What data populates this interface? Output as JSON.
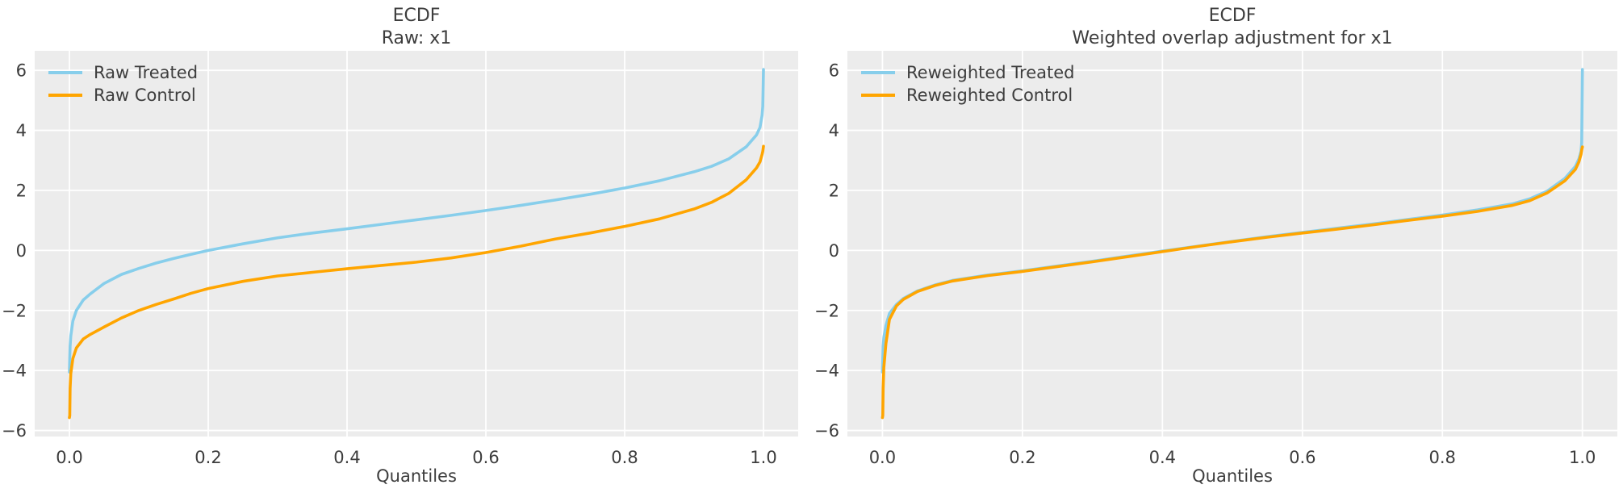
{
  "style": {
    "figure_background": "#ffffff",
    "plot_background": "#ececec",
    "grid_color": "#ffffff",
    "text_color": "#3d3d3d",
    "treated_color": "#87ceeb",
    "control_color": "#ffa500"
  },
  "chart_data": [
    {
      "type": "line",
      "title_lines": [
        "ECDF",
        "Raw: x1"
      ],
      "xlabel": "Quantiles",
      "ylabel": "",
      "x_tick_labels": [
        "0.0",
        "0.2",
        "0.4",
        "0.6",
        "0.8",
        "1.0"
      ],
      "y_tick_labels": [
        "6",
        "4",
        "2",
        "0",
        "−2",
        "−4",
        "−6"
      ],
      "x_tick_values": [
        0.0,
        0.2,
        0.4,
        0.6,
        0.8,
        1.0
      ],
      "y_tick_values": [
        6,
        4,
        2,
        0,
        -2,
        -4,
        -6
      ],
      "xlim": [
        -0.05,
        1.05
      ],
      "ylim": [
        -6.2,
        6.65
      ],
      "grid": true,
      "legend_position": "upper left",
      "series": [
        {
          "name": "Raw Treated",
          "color": "#87ceeb",
          "points": [
            [
              0,
              -4.05
            ],
            [
              0.0005,
              -3.6
            ],
            [
              0.001,
              -3.2
            ],
            [
              0.002,
              -2.85
            ],
            [
              0.005,
              -2.35
            ],
            [
              0.01,
              -2.0
            ],
            [
              0.02,
              -1.65
            ],
            [
              0.03,
              -1.45
            ],
            [
              0.05,
              -1.1
            ],
            [
              0.075,
              -0.8
            ],
            [
              0.1,
              -0.6
            ],
            [
              0.125,
              -0.42
            ],
            [
              0.15,
              -0.27
            ],
            [
              0.175,
              -0.13
            ],
            [
              0.2,
              0.0
            ],
            [
              0.25,
              0.22
            ],
            [
              0.3,
              0.42
            ],
            [
              0.35,
              0.58
            ],
            [
              0.4,
              0.72
            ],
            [
              0.45,
              0.87
            ],
            [
              0.5,
              1.02
            ],
            [
              0.55,
              1.17
            ],
            [
              0.6,
              1.33
            ],
            [
              0.65,
              1.5
            ],
            [
              0.7,
              1.68
            ],
            [
              0.75,
              1.87
            ],
            [
              0.8,
              2.08
            ],
            [
              0.85,
              2.32
            ],
            [
              0.9,
              2.62
            ],
            [
              0.925,
              2.8
            ],
            [
              0.95,
              3.05
            ],
            [
              0.975,
              3.45
            ],
            [
              0.99,
              3.85
            ],
            [
              0.995,
              4.1
            ],
            [
              0.998,
              4.5
            ],
            [
              0.999,
              4.8
            ],
            [
              1,
              6.03
            ]
          ]
        },
        {
          "name": "Raw Control",
          "color": "#ffa500",
          "points": [
            [
              0,
              -5.57
            ],
            [
              0.0005,
              -5.5
            ],
            [
              0.001,
              -4.6
            ],
            [
              0.002,
              -4.1
            ],
            [
              0.005,
              -3.6
            ],
            [
              0.01,
              -3.25
            ],
            [
              0.02,
              -2.95
            ],
            [
              0.03,
              -2.8
            ],
            [
              0.05,
              -2.55
            ],
            [
              0.075,
              -2.25
            ],
            [
              0.1,
              -2.0
            ],
            [
              0.125,
              -1.8
            ],
            [
              0.15,
              -1.62
            ],
            [
              0.175,
              -1.43
            ],
            [
              0.2,
              -1.27
            ],
            [
              0.25,
              -1.03
            ],
            [
              0.3,
              -0.85
            ],
            [
              0.35,
              -0.73
            ],
            [
              0.4,
              -0.61
            ],
            [
              0.45,
              -0.5
            ],
            [
              0.5,
              -0.39
            ],
            [
              0.55,
              -0.25
            ],
            [
              0.6,
              -0.07
            ],
            [
              0.65,
              0.14
            ],
            [
              0.7,
              0.38
            ],
            [
              0.75,
              0.58
            ],
            [
              0.8,
              0.8
            ],
            [
              0.85,
              1.05
            ],
            [
              0.9,
              1.38
            ],
            [
              0.925,
              1.6
            ],
            [
              0.95,
              1.9
            ],
            [
              0.975,
              2.35
            ],
            [
              0.99,
              2.75
            ],
            [
              0.995,
              2.95
            ],
            [
              0.998,
              3.2
            ],
            [
              0.999,
              3.3
            ],
            [
              1,
              3.47
            ]
          ]
        }
      ]
    },
    {
      "type": "line",
      "title_lines": [
        "ECDF",
        "Weighted overlap adjustment for x1"
      ],
      "xlabel": "Quantiles",
      "ylabel": "",
      "x_tick_labels": [
        "0.0",
        "0.2",
        "0.4",
        "0.6",
        "0.8",
        "1.0"
      ],
      "y_tick_labels": [
        "6",
        "4",
        "2",
        "0",
        "−2",
        "−4",
        "−6"
      ],
      "x_tick_values": [
        0.0,
        0.2,
        0.4,
        0.6,
        0.8,
        1.0
      ],
      "y_tick_values": [
        6,
        4,
        2,
        0,
        -2,
        -4,
        -6
      ],
      "xlim": [
        -0.05,
        1.05
      ],
      "ylim": [
        -6.2,
        6.65
      ],
      "grid": true,
      "legend_position": "upper left",
      "series": [
        {
          "name": "Reweighted Treated",
          "color": "#87ceeb",
          "points": [
            [
              0,
              -4.05
            ],
            [
              0.0005,
              -3.6
            ],
            [
              0.001,
              -3.2
            ],
            [
              0.002,
              -2.9
            ],
            [
              0.005,
              -2.5
            ],
            [
              0.01,
              -2.1
            ],
            [
              0.02,
              -1.8
            ],
            [
              0.03,
              -1.6
            ],
            [
              0.05,
              -1.35
            ],
            [
              0.075,
              -1.15
            ],
            [
              0.1,
              -1.0
            ],
            [
              0.15,
              -0.82
            ],
            [
              0.2,
              -0.68
            ],
            [
              0.25,
              -0.52
            ],
            [
              0.3,
              -0.36
            ],
            [
              0.35,
              -0.19
            ],
            [
              0.4,
              -0.02
            ],
            [
              0.45,
              0.14
            ],
            [
              0.5,
              0.3
            ],
            [
              0.55,
              0.46
            ],
            [
              0.6,
              0.6
            ],
            [
              0.65,
              0.74
            ],
            [
              0.7,
              0.88
            ],
            [
              0.75,
              1.03
            ],
            [
              0.8,
              1.18
            ],
            [
              0.85,
              1.35
            ],
            [
              0.9,
              1.55
            ],
            [
              0.925,
              1.72
            ],
            [
              0.95,
              1.98
            ],
            [
              0.975,
              2.4
            ],
            [
              0.99,
              2.8
            ],
            [
              0.995,
              3.05
            ],
            [
              0.998,
              3.3
            ],
            [
              0.999,
              3.6
            ],
            [
              1,
              6.03
            ]
          ]
        },
        {
          "name": "Reweighted Control",
          "color": "#ffa500",
          "points": [
            [
              0,
              -5.57
            ],
            [
              0.0005,
              -5.5
            ],
            [
              0.001,
              -4.6
            ],
            [
              0.002,
              -3.9
            ],
            [
              0.005,
              -3.1
            ],
            [
              0.01,
              -2.3
            ],
            [
              0.02,
              -1.85
            ],
            [
              0.03,
              -1.63
            ],
            [
              0.05,
              -1.37
            ],
            [
              0.075,
              -1.17
            ],
            [
              0.1,
              -1.02
            ],
            [
              0.15,
              -0.84
            ],
            [
              0.2,
              -0.7
            ],
            [
              0.25,
              -0.54
            ],
            [
              0.3,
              -0.38
            ],
            [
              0.35,
              -0.21
            ],
            [
              0.4,
              -0.04
            ],
            [
              0.45,
              0.13
            ],
            [
              0.5,
              0.29
            ],
            [
              0.55,
              0.44
            ],
            [
              0.6,
              0.58
            ],
            [
              0.65,
              0.71
            ],
            [
              0.7,
              0.85
            ],
            [
              0.75,
              1.0
            ],
            [
              0.8,
              1.14
            ],
            [
              0.85,
              1.3
            ],
            [
              0.9,
              1.5
            ],
            [
              0.925,
              1.66
            ],
            [
              0.95,
              1.92
            ],
            [
              0.975,
              2.32
            ],
            [
              0.99,
              2.7
            ],
            [
              0.995,
              2.95
            ],
            [
              0.998,
              3.2
            ],
            [
              0.999,
              3.35
            ],
            [
              1,
              3.45
            ]
          ]
        }
      ]
    }
  ]
}
